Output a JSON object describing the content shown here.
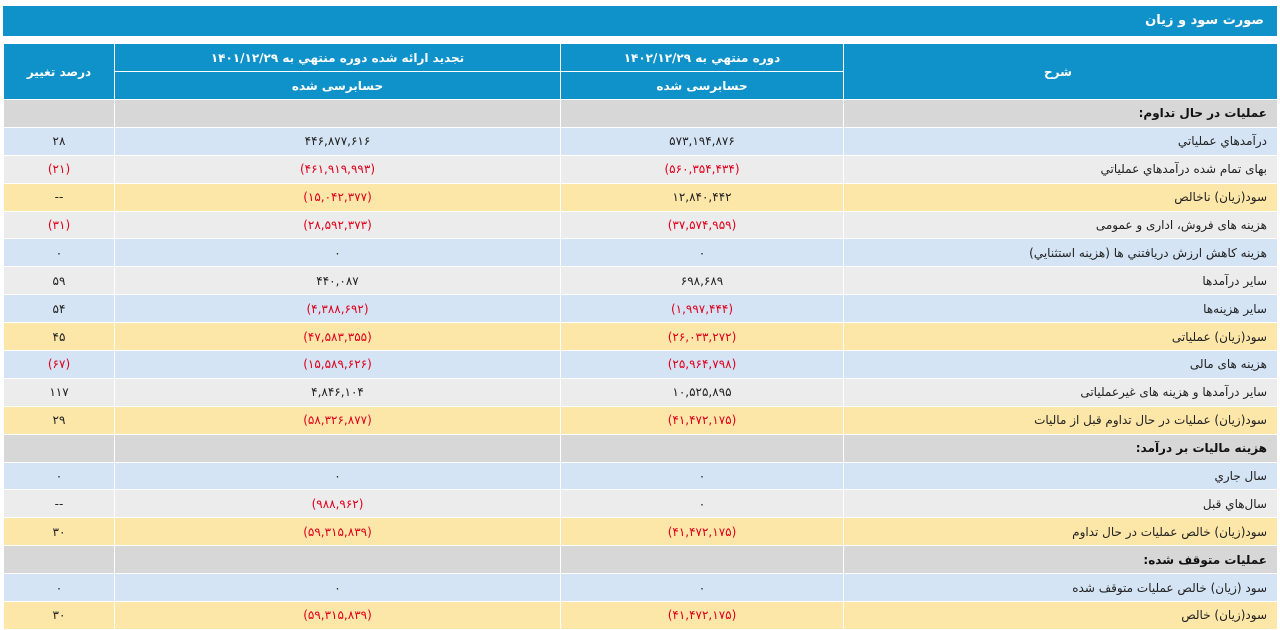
{
  "title": "صورت سود و زیان",
  "headers": {
    "description": "شرح",
    "period_current": "دوره منتهي به ۱۴۰۲/۱۲/۲۹",
    "period_current_sub": "حسابرسی شده",
    "period_prior": "تجدید ارائه شده دوره منتهي به ۱۴۰۱/۱۲/۲۹",
    "period_prior_sub": "حسابرسی شده",
    "change_percent": "درصد تغییر"
  },
  "rows": [
    {
      "style": "head",
      "description": "عملیات در حال تداوم:",
      "current": "",
      "prior": "",
      "change": ""
    },
    {
      "style": "blue",
      "description": "درآمدهاي عملياتي",
      "current": "۵۷۳,۱۹۴,۸۷۶",
      "prior": "۴۴۶,۸۷۷,۶۱۶",
      "change": "۲۸"
    },
    {
      "style": "gray",
      "description": "بهاى تمام شده درآمدهاي عملياتي",
      "current": "(۵۶۰,۳۵۴,۴۳۴)",
      "prior": "(۴۶۱,۹۱۹,۹۹۳)",
      "change": "(۲۱)"
    },
    {
      "style": "yellow",
      "description": "سود(زيان) ناخالص",
      "current": "۱۲,۸۴۰,۴۴۲",
      "prior": "(۱۵,۰۴۲,۳۷۷)",
      "change": "--"
    },
    {
      "style": "gray",
      "description": "هزينه هاى فروش، ادارى و عمومى",
      "current": "(۳۷,۵۷۴,۹۵۹)",
      "prior": "(۲۸,۵۹۲,۳۷۳)",
      "change": "(۳۱)"
    },
    {
      "style": "blue",
      "description": "هزینه کاهش ارزش دريافتني ها (هزينه استثنايي)",
      "current": "۰",
      "prior": "۰",
      "change": "۰"
    },
    {
      "style": "gray",
      "description": "ساير درآمدها",
      "current": "۶۹۸,۶۸۹",
      "prior": "۴۴۰,۰۸۷",
      "change": "۵۹"
    },
    {
      "style": "blue",
      "description": "سایر هزینه‌ها",
      "current": "(۱,۹۹۷,۴۴۴)",
      "prior": "(۴,۳۸۸,۶۹۲)",
      "change": "۵۴"
    },
    {
      "style": "yellow",
      "description": "سود(زيان) عملياتى",
      "current": "(۲۶,۰۳۳,۲۷۲)",
      "prior": "(۴۷,۵۸۳,۳۵۵)",
      "change": "۴۵"
    },
    {
      "style": "blue",
      "description": "هزينه هاى مالى",
      "current": "(۲۵,۹۶۴,۷۹۸)",
      "prior": "(۱۵,۵۸۹,۶۲۶)",
      "change": "(۶۷)"
    },
    {
      "style": "gray",
      "description": "ساير درآمدها و هزينه هاى غيرعملياتى",
      "current": "۱۰,۵۲۵,۸۹۵",
      "prior": "۴,۸۴۶,۱۰۴",
      "change": "۱۱۷"
    },
    {
      "style": "yellow",
      "description": "سود(زيان) عمليات در حال تداوم قبل از ماليات",
      "current": "(۴۱,۴۷۲,۱۷۵)",
      "prior": "(۵۸,۳۲۶,۸۷۷)",
      "change": "۲۹"
    },
    {
      "style": "head",
      "description": "هزينه ماليات بر درآمد:",
      "current": "",
      "prior": "",
      "change": ""
    },
    {
      "style": "blue",
      "description": "سال جاري",
      "current": "۰",
      "prior": "۰",
      "change": "۰"
    },
    {
      "style": "gray",
      "description": "سال‌هاي قبل",
      "current": "۰",
      "prior": "(۹۸۸,۹۶۲)",
      "change": "--"
    },
    {
      "style": "yellow",
      "description": "سود(زيان) خالص عمليات در حال تداوم",
      "current": "(۴۱,۴۷۲,۱۷۵)",
      "prior": "(۵۹,۳۱۵,۸۳۹)",
      "change": "۳۰"
    },
    {
      "style": "head",
      "description": "عمليات متوقف شده:",
      "current": "",
      "prior": "",
      "change": ""
    },
    {
      "style": "blue",
      "description": "سود (زيان) خالص عمليات متوقف شده",
      "current": "۰",
      "prior": "۰",
      "change": "۰"
    },
    {
      "style": "yellow",
      "description": "سود(زيان) خالص",
      "current": "(۴۱,۴۷۲,۱۷۵)",
      "prior": "(۵۹,۳۱۵,۸۳۹)",
      "change": "۳۰"
    }
  ]
}
